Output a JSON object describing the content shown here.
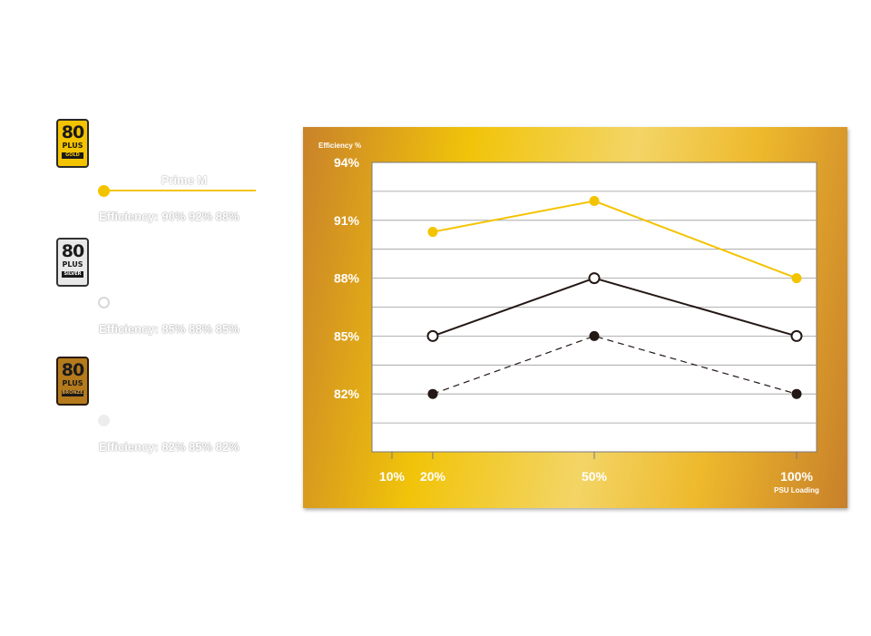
{
  "legend": [
    {
      "badge_number": "80",
      "badge_plus": "PLUS",
      "badge_tier": "GOLD",
      "name": "Prime M",
      "efficiency": "Efficiency: 90% 92% 88%"
    },
    {
      "badge_number": "80",
      "badge_plus": "PLUS",
      "badge_tier": "SILVER",
      "name": "",
      "efficiency": "Efficiency: 85% 88% 85%"
    },
    {
      "badge_number": "80",
      "badge_plus": "PLUS",
      "badge_tier": "BRONZE",
      "name": "",
      "efficiency": "Efficiency: 82% 85% 82%"
    }
  ],
  "colors": {
    "gold_series": "#f4c300",
    "silver_series": "#231815",
    "bronze_series": "#231815",
    "panel_border": "#c9822a",
    "text": "#ffffff"
  },
  "chart_data": {
    "type": "line",
    "ylabel": "Efficiency %",
    "xlabel": "PSU Loading",
    "x_ticks": [
      "10%",
      "20%",
      "50%",
      "100%"
    ],
    "x_tick_values": [
      10,
      20,
      50,
      100
    ],
    "y_ticks": [
      "94%",
      "91%",
      "88%",
      "85%",
      "82%"
    ],
    "y_tick_values": [
      94,
      91,
      88,
      85,
      82
    ],
    "ylim": [
      79,
      94
    ],
    "xlim": [
      10,
      100
    ],
    "grid": true,
    "series": [
      {
        "name": "Prime M",
        "style": "solid",
        "marker": "filled",
        "color": "#f4c300",
        "x": [
          20,
          50,
          100
        ],
        "y": [
          90.4,
          92,
          88
        ]
      },
      {
        "name": "",
        "style": "solid",
        "marker": "hollow",
        "color": "#231815",
        "x": [
          20,
          50,
          100
        ],
        "y": [
          85,
          88,
          85
        ]
      },
      {
        "name": "",
        "style": "dashed",
        "marker": "filled",
        "color": "#231815",
        "x": [
          20,
          50,
          100
        ],
        "y": [
          82,
          85,
          82
        ]
      }
    ]
  }
}
